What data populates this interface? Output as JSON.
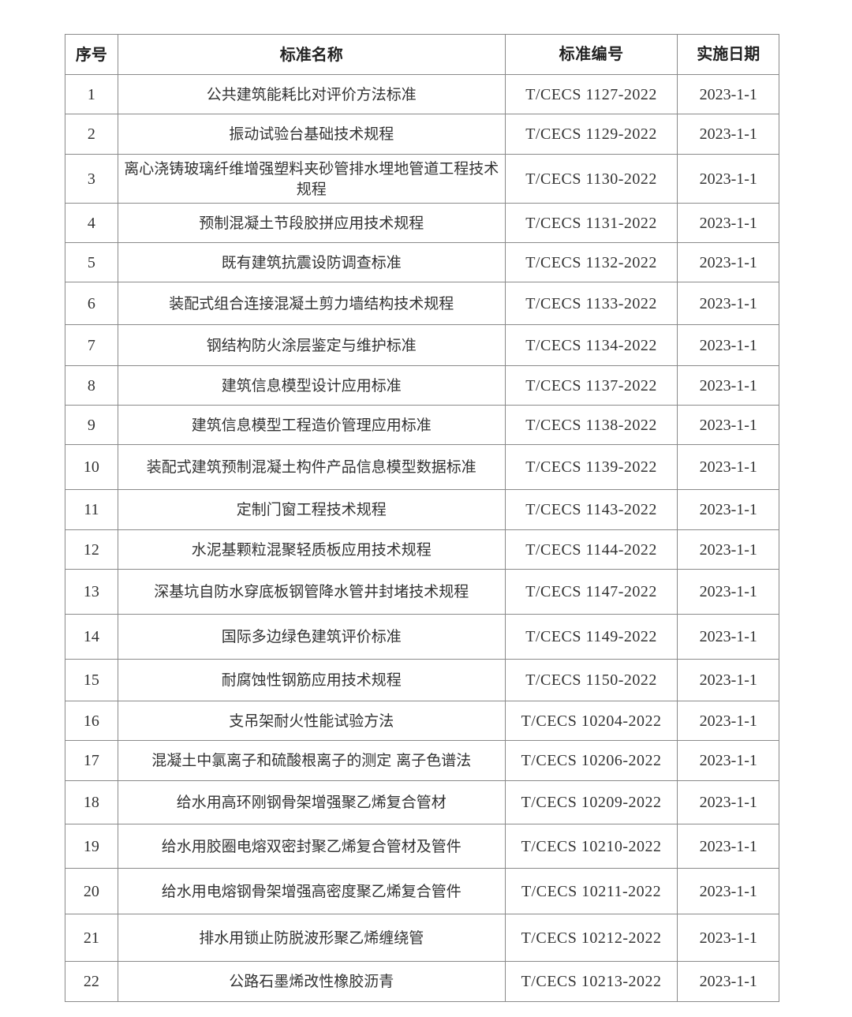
{
  "table": {
    "headers": [
      "序号",
      "标准名称",
      "标准编号",
      "实施日期"
    ],
    "rows": [
      {
        "no": "1",
        "name": "公共建筑能耗比对评价方法标准",
        "code": "T/CECS 1127-2022",
        "date": "2023-1-1"
      },
      {
        "no": "2",
        "name": "振动试验台基础技术规程",
        "code": "T/CECS 1129-2022",
        "date": "2023-1-1"
      },
      {
        "no": "3",
        "name": "离心浇铸玻璃纤维增强塑料夹砂管排水埋地管道工程技术规程",
        "code": "T/CECS 1130-2022",
        "date": "2023-1-1"
      },
      {
        "no": "4",
        "name": "预制混凝土节段胶拼应用技术规程",
        "code": "T/CECS 1131-2022",
        "date": "2023-1-1"
      },
      {
        "no": "5",
        "name": "既有建筑抗震设防调查标准",
        "code": "T/CECS 1132-2022",
        "date": "2023-1-1"
      },
      {
        "no": "6",
        "name": "装配式组合连接混凝土剪力墙结构技术规程",
        "code": "T/CECS 1133-2022",
        "date": "2023-1-1"
      },
      {
        "no": "7",
        "name": "钢结构防火涂层鉴定与维护标准",
        "code": "T/CECS 1134-2022",
        "date": "2023-1-1"
      },
      {
        "no": "8",
        "name": "建筑信息模型设计应用标准",
        "code": "T/CECS 1137-2022",
        "date": "2023-1-1"
      },
      {
        "no": "9",
        "name": "建筑信息模型工程造价管理应用标准",
        "code": "T/CECS 1138-2022",
        "date": "2023-1-1"
      },
      {
        "no": "10",
        "name": "装配式建筑预制混凝土构件产品信息模型数据标准",
        "code": "T/CECS 1139-2022",
        "date": "2023-1-1"
      },
      {
        "no": "11",
        "name": "定制门窗工程技术规程",
        "code": "T/CECS 1143-2022",
        "date": "2023-1-1"
      },
      {
        "no": "12",
        "name": "水泥基颗粒混聚轻质板应用技术规程",
        "code": "T/CECS 1144-2022",
        "date": "2023-1-1"
      },
      {
        "no": "13",
        "name": "深基坑自防水穿底板钢管降水管井封堵技术规程",
        "code": "T/CECS 1147-2022",
        "date": "2023-1-1"
      },
      {
        "no": "14",
        "name": "国际多边绿色建筑评价标准",
        "code": "T/CECS 1149-2022",
        "date": "2023-1-1"
      },
      {
        "no": "15",
        "name": "耐腐蚀性钢筋应用技术规程",
        "code": "T/CECS 1150-2022",
        "date": "2023-1-1"
      },
      {
        "no": "16",
        "name": "支吊架耐火性能试验方法",
        "code": "T/CECS 10204-2022",
        "date": "2023-1-1"
      },
      {
        "no": "17",
        "name": "混凝土中氯离子和硫酸根离子的测定 离子色谱法",
        "code": "T/CECS 10206-2022",
        "date": "2023-1-1"
      },
      {
        "no": "18",
        "name": "给水用高环刚钢骨架增强聚乙烯复合管材",
        "code": "T/CECS 10209-2022",
        "date": "2023-1-1"
      },
      {
        "no": "19",
        "name": "给水用胶圈电熔双密封聚乙烯复合管材及管件",
        "code": "T/CECS 10210-2022",
        "date": "2023-1-1"
      },
      {
        "no": "20",
        "name": "给水用电熔钢骨架增强高密度聚乙烯复合管件",
        "code": "T/CECS 10211-2022",
        "date": "2023-1-1"
      },
      {
        "no": "21",
        "name": "排水用锁止防脱波形聚乙烯缠绕管",
        "code": "T/CECS 10212-2022",
        "date": "2023-1-1"
      },
      {
        "no": "22",
        "name": "公路石墨烯改性橡胶沥青",
        "code": "T/CECS 10213-2022",
        "date": "2023-1-1"
      }
    ]
  }
}
